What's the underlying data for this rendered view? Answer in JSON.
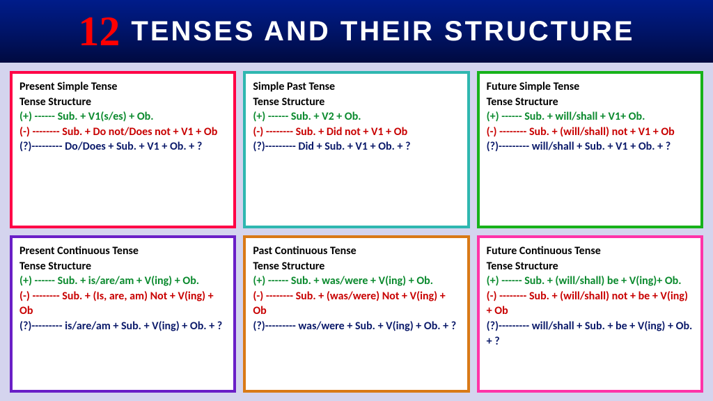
{
  "header": {
    "number": "12",
    "text": "TENSES AND THEIR STRUCTURE",
    "number_color": "#ff0000",
    "text_color": "#ffffff",
    "bg_gradient_top": "#001c8a",
    "bg_gradient_bottom": "#000a40"
  },
  "colors": {
    "page_bg": "#d4d4ee",
    "title": "#000000",
    "positive": "#0b8a2e",
    "negative": "#c80000",
    "question": "#0b1a6a"
  },
  "cards": [
    {
      "border_color": "#ff0046",
      "title": "Present Simple Tense",
      "subtitle": "Tense Structure",
      "positive": "(+) ------ Sub. + V1(s/es) + Ob.",
      "negative": "(-) -------- Sub. + Do not/Does not + V1 + Ob",
      "question": "(?)--------- Do/Does + Sub. + V1 + Ob. + ?"
    },
    {
      "border_color": "#2fb7b0",
      "title": "Simple Past Tense",
      "subtitle": "Tense Structure",
      "positive": "(+) ------ Sub. + V2 + Ob.",
      "negative": "(-) -------- Sub. + Did not + V1 + Ob",
      "question": "(?)--------- Did + Sub. + V1 + Ob. + ?"
    },
    {
      "border_color": "#17b21a",
      "title": "Future Simple Tense",
      "subtitle": "Tense Structure",
      "positive": "(+) ------ Sub. + will/shall + V1+ Ob.",
      "negative": "(-) -------- Sub. + (will/shall) not + V1 + Ob",
      "question": "(?)--------- will/shall + Sub. + V1 + Ob. + ?"
    },
    {
      "border_color": "#6a1fc7",
      "title": "Present Continuous Tense",
      "subtitle": "Tense Structure",
      "positive": "(+) ------ Sub. + is/are/am + V(ing) + Ob.",
      "negative": "(-) -------- Sub. + (Is, are, am) Not + V(ing) + Ob",
      "question": "(?)--------- is/are/am + Sub. + V(ing) + Ob. + ?"
    },
    {
      "border_color": "#d97a17",
      "title": "Past Continuous Tense",
      "subtitle": "Tense Structure",
      "positive": "(+) ------ Sub. + was/were + V(ing) + Ob.",
      "negative": "(-) -------- Sub. + (was/were) Not + V(ing) + Ob",
      "question": "(?)--------- was/were + Sub. + V(ing) + Ob. + ?"
    },
    {
      "border_color": "#ff33a8",
      "title": "Future Continuous Tense",
      "subtitle": "Tense Structure",
      "positive": "(+) ------ Sub. + (will/shall) be + V(ing)+ Ob.",
      "negative": "(-) -------- Sub. + (will/shall) not + be + V(ing) + Ob",
      "question": "(?)--------- will/shall + Sub. + be + V(ing) + Ob. + ?"
    }
  ]
}
